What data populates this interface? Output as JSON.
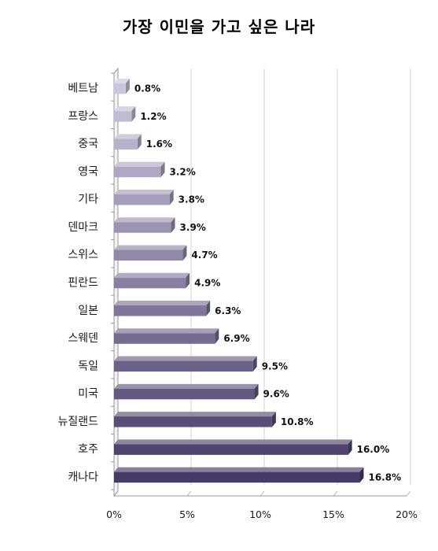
{
  "chart_data": {
    "type": "bar",
    "orientation": "horizontal",
    "title": "가장 이민을 가고 싶은 나라",
    "categories": [
      "베트남",
      "프랑스",
      "중국",
      "영국",
      "기타",
      "덴마크",
      "스위스",
      "핀란드",
      "일본",
      "스웨덴",
      "독일",
      "미국",
      "뉴질랜드",
      "호주",
      "캐나다"
    ],
    "values": [
      0.8,
      1.2,
      1.6,
      3.2,
      3.8,
      3.9,
      4.7,
      4.9,
      6.3,
      6.9,
      9.5,
      9.6,
      10.8,
      16.0,
      16.8
    ],
    "value_labels": [
      "0.8%",
      "1.2%",
      "1.6%",
      "3.2%",
      "3.8%",
      "3.9%",
      "4.7%",
      "4.9%",
      "6.3%",
      "6.9%",
      "9.5%",
      "9.6%",
      "10.8%",
      "16.0%",
      "16.8%"
    ],
    "xlim": [
      0,
      20
    ],
    "xticks": [
      0,
      5,
      10,
      15,
      20
    ],
    "xtick_labels": [
      "0%",
      "5%",
      "10%",
      "15%",
      "20%"
    ],
    "xlabel": "",
    "ylabel": "",
    "grid": true,
    "colors": {
      "light": "#cbc5dc",
      "dark": "#463a66"
    }
  }
}
